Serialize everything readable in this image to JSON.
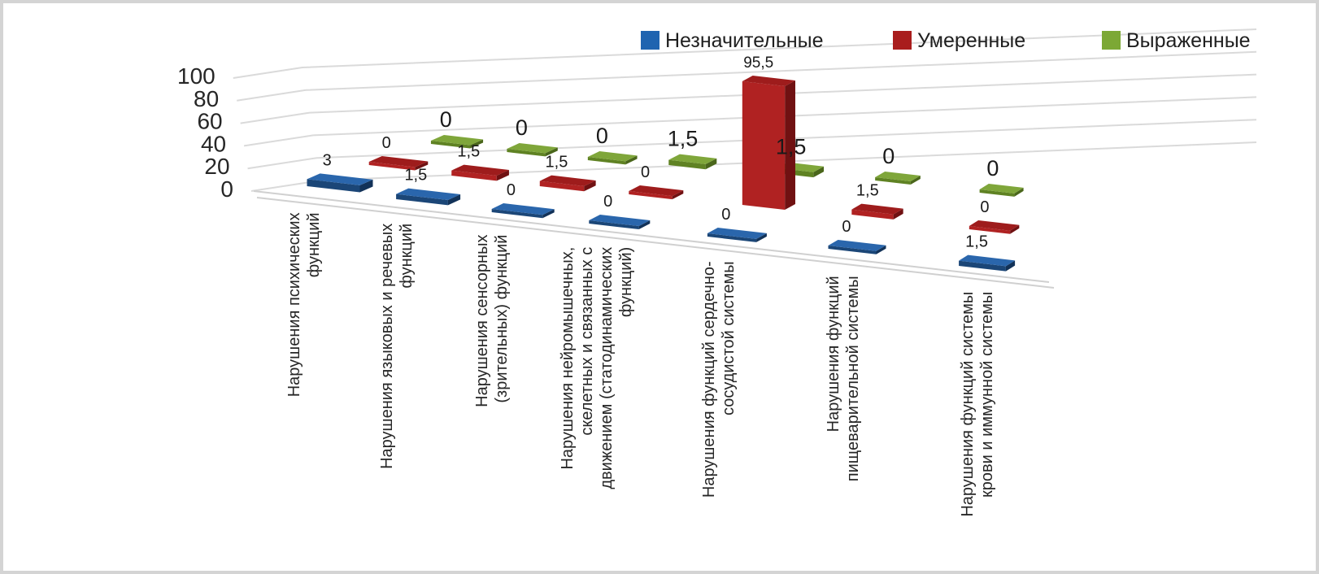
{
  "chart_data": {
    "type": "bar",
    "projection": "3d",
    "title": "",
    "legend": {
      "position": "top",
      "entries": [
        "Незначительные",
        "Умеренные",
        "Выраженные"
      ]
    },
    "value_axis": {
      "min": 0,
      "max": 100,
      "step": 20,
      "tick_labels": [
        "0",
        "20",
        "40",
        "60",
        "80",
        "100"
      ]
    },
    "categories": [
      "Нарушения психических функций",
      "Нарушения языковых и речевых функций",
      "Нарушения сенсорных (зрительных) функций",
      "Нарушения нейромышечных, скелетных и связанных с движением (статодинамических функций)",
      "Нарушения функций сердечно-сосудистой системы",
      "Нарушения функций пищеварительной системы",
      "Нарушения функций системы крови и иммунной системы"
    ],
    "category_label_lines": [
      [
        "Нарушения психических",
        "функций"
      ],
      [
        "Нарушения языковых и речевых",
        "функций"
      ],
      [
        "Нарушения сенсорных",
        "(зрительных) функций"
      ],
      [
        "Нарушения нейромышечных,",
        "скелетных и связанных с",
        "движением (статодинамических",
        "функций)"
      ],
      [
        "Нарушения функций сердечно-",
        "сосудистой системы"
      ],
      [
        "Нарушения функций",
        "пищеварительной системы"
      ],
      [
        "Нарушения функций системы",
        "крови и иммунной системы"
      ]
    ],
    "series": [
      {
        "name": "Незначительные",
        "color": "#1F64B0",
        "shades": {
          "top": "#2A66AC",
          "front": "#1B4677",
          "side": "#123258"
        },
        "values": [
          3,
          1.5,
          0,
          0,
          0,
          0,
          1.5
        ]
      },
      {
        "name": "Умеренные",
        "color": "#A91D1D",
        "shades": {
          "top": "#9E1C1C",
          "front": "#B02222",
          "side": "#701112"
        },
        "values": [
          0,
          1.5,
          1.5,
          0,
          95.5,
          1.5,
          0
        ]
      },
      {
        "name": "Выраженные",
        "color": "#7CA835",
        "shades": {
          "top": "#7FA63A",
          "front": "#5F8223",
          "side": "#4A661B"
        },
        "values": [
          0,
          0,
          0,
          1.5,
          1.5,
          0,
          0
        ]
      }
    ],
    "data_label_decimal_separator": ",",
    "gridline_color": "#DADADA",
    "floor_edge_color": "#D0D0D0",
    "text_color": "#262626"
  }
}
